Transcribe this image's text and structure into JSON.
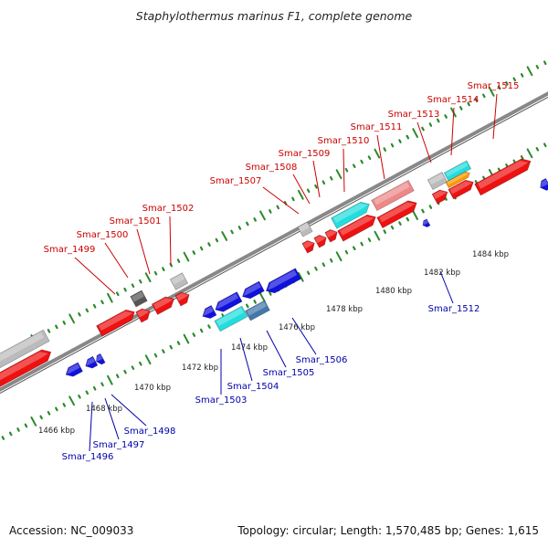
{
  "title": "Staphylothermus marinus F1, complete genome",
  "footer": {
    "accession": "Accession: NC_009033",
    "info": "Topology: circular; Length: 1,570,485 bp; Genes: 1,615"
  },
  "colors": {
    "forward_label": "#cc0000",
    "reverse_label": "#0000aa",
    "backbone": "#888888",
    "tick": "#2a8a2a",
    "gene_red": "#ee1111",
    "gene_blue": "#1111dd",
    "gene_cyan": "#22dddd",
    "gene_gray": "#bbbbbb",
    "gene_darkgray": "#555555",
    "gene_pink": "#ee8888",
    "gene_orange": "#ff9900",
    "gene_steel": "#4477aa"
  },
  "scale_labels": [
    "1466 kbp",
    "1468 kbp",
    "1470 kbp",
    "1472 kbp",
    "1474 kbp",
    "1476 kbp",
    "1478 kbp",
    "1480 kbp",
    "1482 kbp",
    "1484 kbp"
  ],
  "forward_genes": [
    "Smar_1499",
    "Smar_1500",
    "Smar_1501",
    "Smar_1502",
    "Smar_1507",
    "Smar_1508",
    "Smar_1509",
    "Smar_1510",
    "Smar_1511",
    "Smar_1513",
    "Smar_1514",
    "Smar_1515"
  ],
  "reverse_genes": [
    "Smar_1496",
    "Smar_1497",
    "Smar_1498",
    "Smar_1503",
    "Smar_1504",
    "Smar_1505",
    "Smar_1506",
    "Smar_1512"
  ]
}
